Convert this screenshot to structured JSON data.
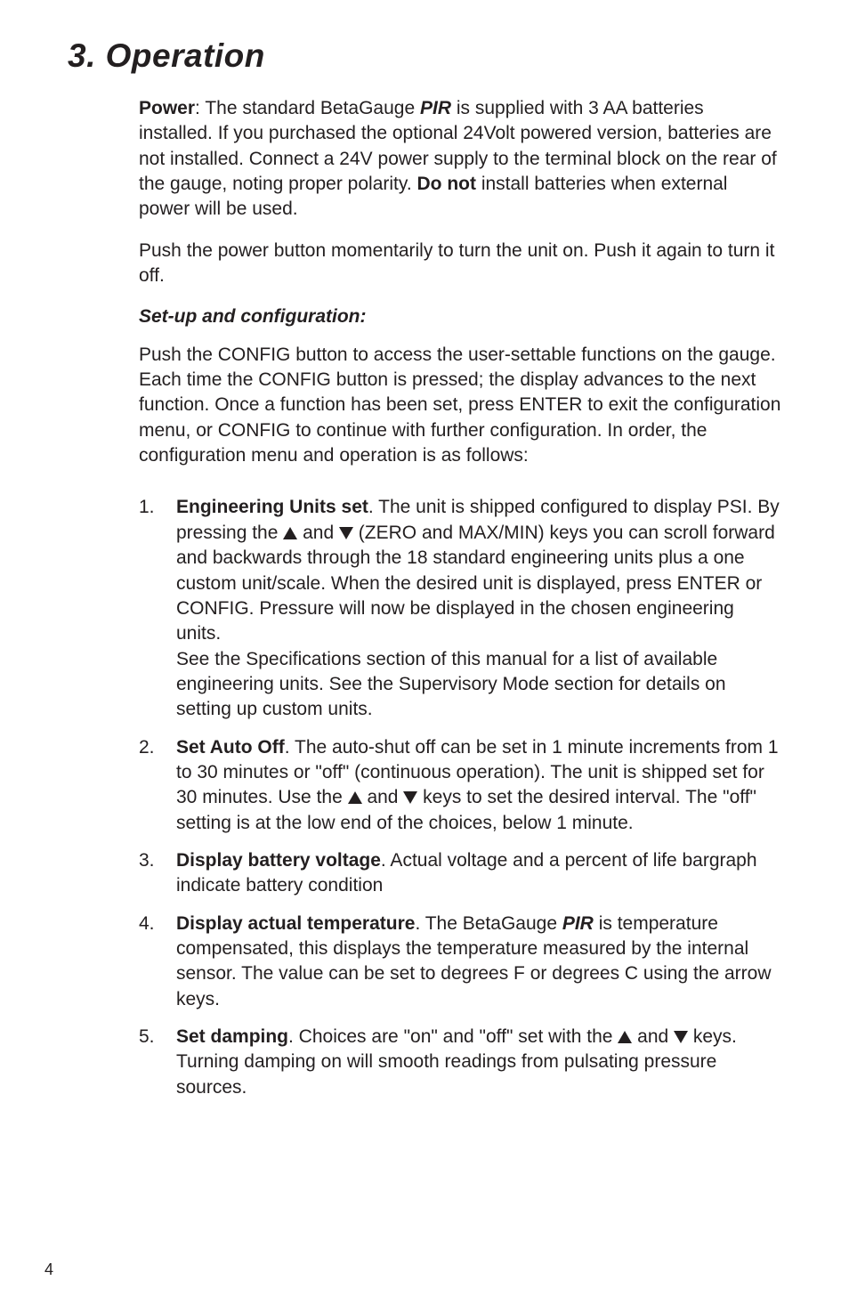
{
  "title": "3. Operation",
  "intro": {
    "power_label": "Power",
    "power_text_1": ":   The standard BetaGauge ",
    "power_pir": "PIR",
    "power_text_2": " is supplied with 3 AA batteries installed.  If you purchased the optional 24Volt powered version, batteries are not installed. Connect a 24V power supply to the terminal block on the rear of the gauge, noting proper polarity.  ",
    "donot": "Do not",
    "power_text_3": " install batteries when external power will be used.",
    "push_text": "Push the power button momentarily to turn the unit on.  Push it again to turn it off."
  },
  "setup_heading": "Set-up and configuration:",
  "setup_para": "Push the CONFIG button to access the user-settable functions on the gauge. Each time the CONFIG button is pressed; the display advances to the next function.  Once a function has been set, press ENTER to exit the configuration menu, or CONFIG to continue with further configuration.  In order, the configuration menu and operation is as follows:",
  "items": [
    {
      "num": "1.",
      "title": "Engineering Units set",
      "pre": ".  The unit is shipped configured to display PSI. By pressing the ",
      "mid": " and  ",
      "post": " (ZERO and MAX/MIN) keys you can scroll forward and backwards through the 18 standard engineering units plus a one custom unit/scale. When the desired unit is displayed, press ENTER or CONFIG.  Pressure will now be displayed in the chosen engineering units.",
      "extra": "See the Specifications section of this manual for a list of available engineering units. See the Supervisory Mode section for details on setting up custom units."
    },
    {
      "num": "2.",
      "title": "Set Auto Off",
      "pre": ".  The auto-shut off can be set in 1 minute increments from 1 to 30 minutes or \"off\" (continuous operation).  The unit is shipped set for 30 minutes.  Use the ",
      "mid": " and ",
      "post": " keys to set the desired interval.  The \"off\" setting is at the low end of the choices, below 1 minute."
    },
    {
      "num": "3.",
      "title": "Display battery voltage",
      "text": ".  Actual voltage and a percent of life bargraph indicate battery condition"
    },
    {
      "num": "4.",
      "title": "Display actual temperature",
      "pre": ". The BetaGauge ",
      "pir": "PIR",
      "post": " is temperature compensated, this displays the temperature measured by the internal sensor. The value can be set to degrees F or degrees C using the arrow keys."
    },
    {
      "num": "5.",
      "title": "Set damping",
      "pre": ".  Choices are \"on\" and \"off\" set with the ",
      "mid": " and ",
      "post": " keys. Turning damping on will smooth readings from pulsating pressure sources."
    }
  ],
  "pagenum": "4"
}
